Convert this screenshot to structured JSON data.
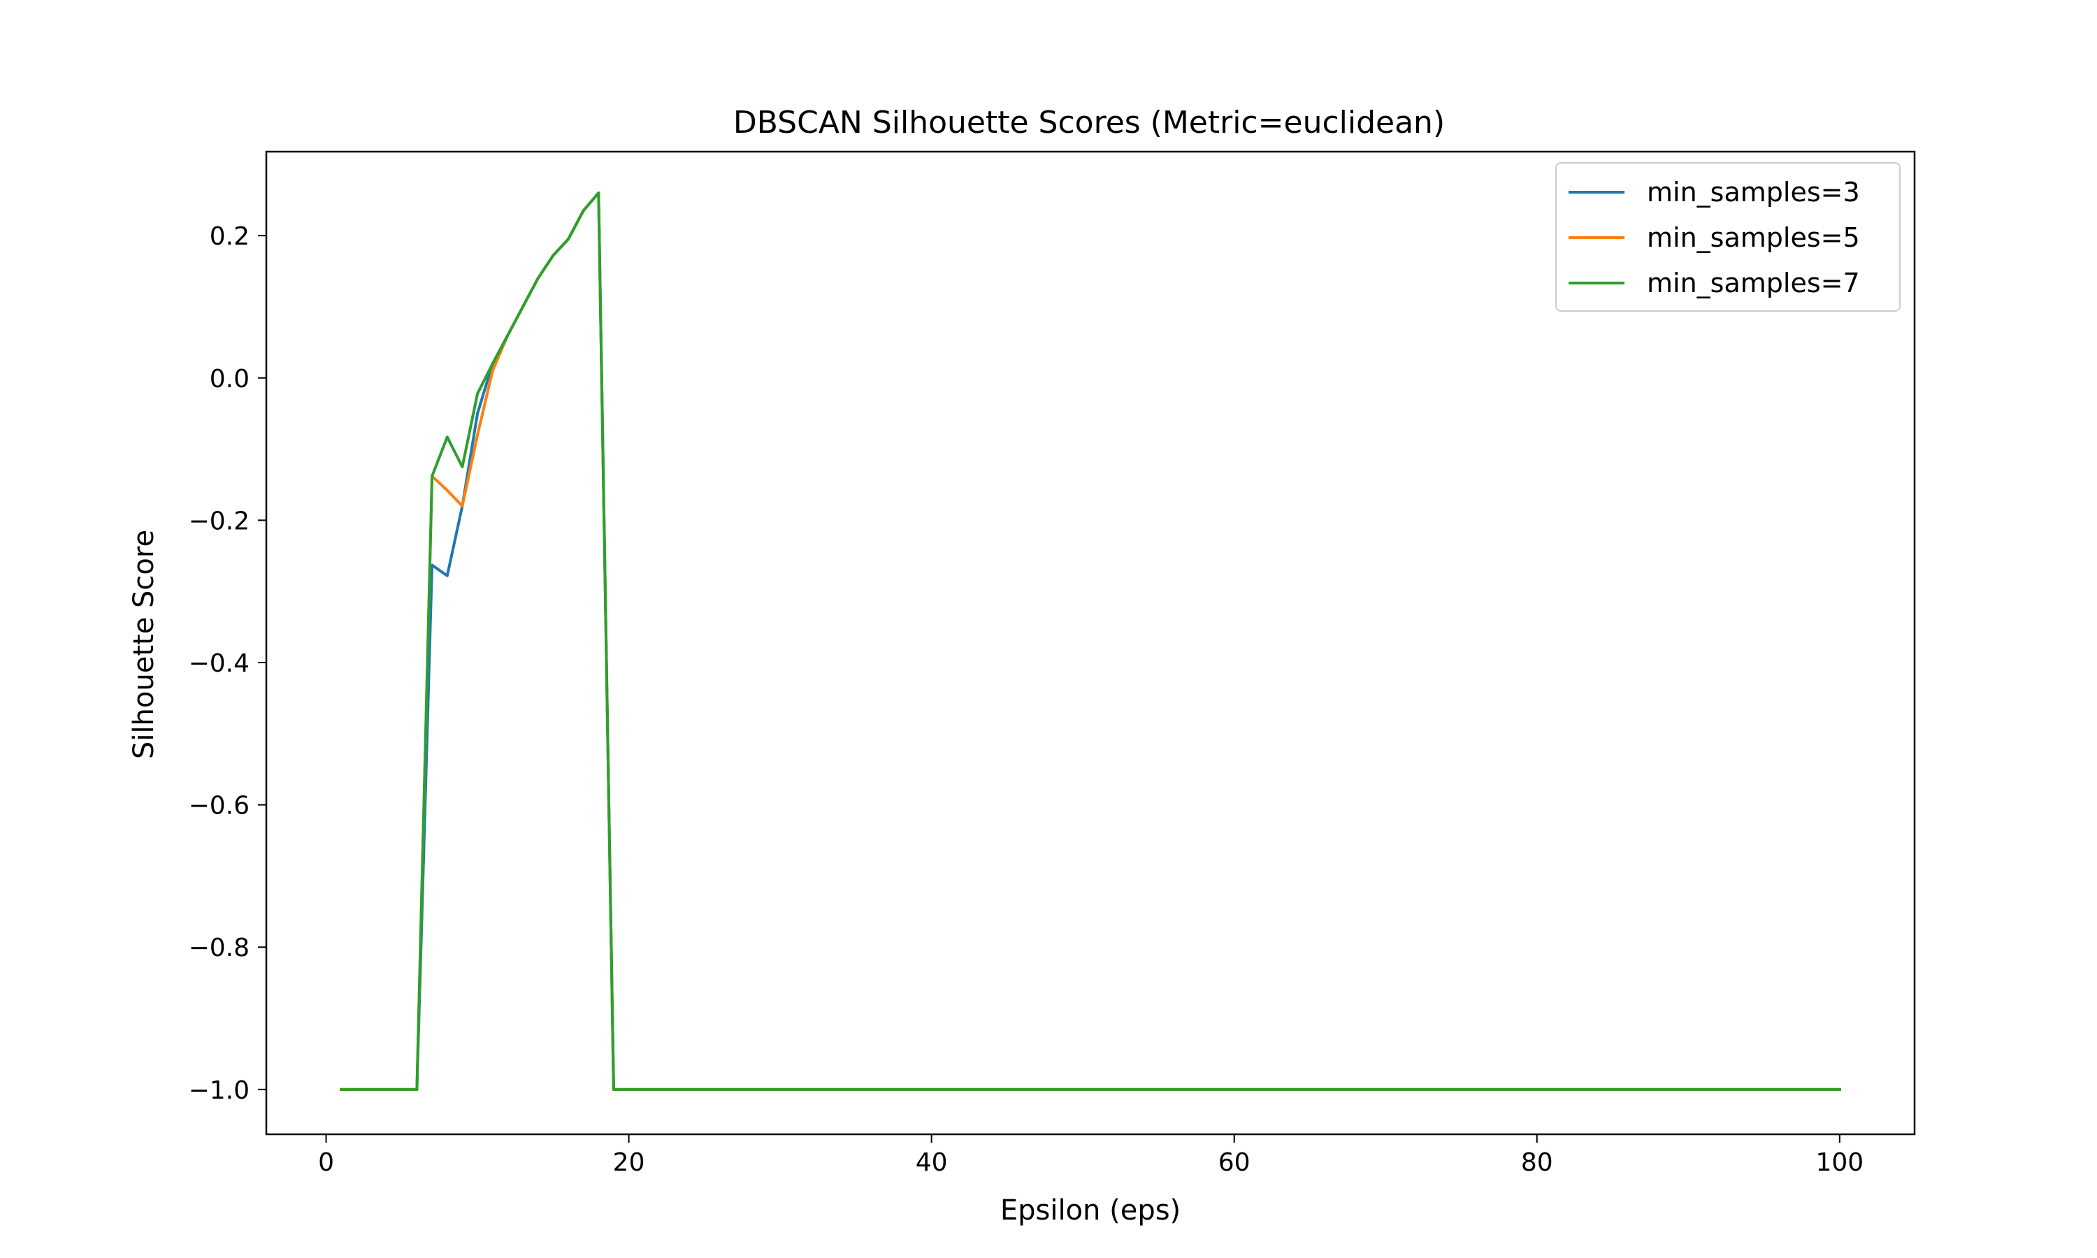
{
  "chart_data": {
    "type": "line",
    "title": "DBSCAN Silhouette Scores (Metric=euclidean)",
    "xlabel": "Epsilon (eps)",
    "ylabel": "Silhouette Score",
    "xlim": [
      -3.95,
      104.95
    ],
    "ylim": [
      -1.063,
      0.318
    ],
    "xticks": [
      0,
      20,
      40,
      60,
      80,
      100
    ],
    "xtick_labels": [
      "0",
      "20",
      "40",
      "60",
      "80",
      "100"
    ],
    "yticks": [
      -1.0,
      -0.8,
      -0.6,
      -0.4,
      -0.2,
      0.0,
      0.2
    ],
    "ytick_labels": [
      "−1.0",
      "−0.8",
      "−0.6",
      "−0.4",
      "−0.2",
      "0.0",
      "0.2"
    ],
    "grid": false,
    "legend_position": "top-right",
    "series": [
      {
        "name": "min_samples=3",
        "color": "#1f77b4",
        "x": [
          1,
          6,
          7,
          8,
          9,
          10,
          11,
          12,
          13,
          14,
          15,
          16,
          17,
          18,
          19,
          100
        ],
        "y": [
          -1.0,
          -1.0,
          -0.263,
          -0.278,
          -0.18,
          -0.05,
          0.02,
          0.06,
          0.1,
          0.14,
          0.172,
          0.195,
          0.235,
          0.26,
          -1.0,
          -1.0
        ]
      },
      {
        "name": "min_samples=5",
        "color": "#ff7f0e",
        "x": [
          1,
          6,
          7,
          8,
          9,
          10,
          11,
          12,
          13,
          14,
          15,
          16,
          17,
          18,
          19,
          100
        ],
        "y": [
          -1.0,
          -1.0,
          -0.138,
          -0.158,
          -0.18,
          -0.08,
          0.01,
          0.06,
          0.1,
          0.14,
          0.172,
          0.195,
          0.235,
          0.26,
          -1.0,
          -1.0
        ]
      },
      {
        "name": "min_samples=7",
        "color": "#2ca02c",
        "x": [
          1,
          6,
          7,
          8,
          9,
          10,
          11,
          12,
          13,
          14,
          15,
          16,
          17,
          18,
          19,
          100
        ],
        "y": [
          -1.0,
          -1.0,
          -0.138,
          -0.083,
          -0.125,
          -0.022,
          0.02,
          0.06,
          0.1,
          0.14,
          0.172,
          0.195,
          0.235,
          0.26,
          -1.0,
          -1.0
        ]
      }
    ]
  }
}
